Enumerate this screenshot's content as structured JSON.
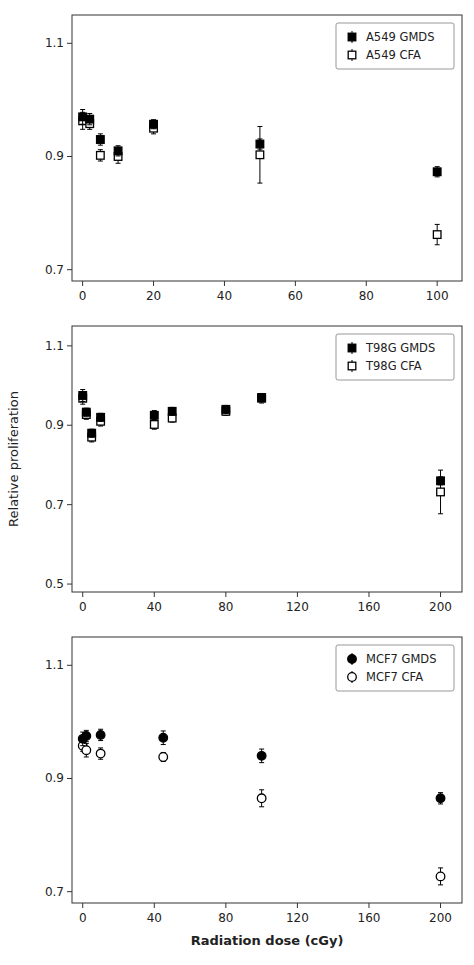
{
  "chart_data": [
    {
      "type": "scatter",
      "x": [
        0,
        2,
        5,
        10,
        20,
        50,
        100
      ],
      "xlim": [
        -3,
        107
      ],
      "xticks": [
        0,
        20,
        40,
        60,
        80,
        100
      ],
      "ylim": [
        0.68,
        1.15
      ],
      "yticks": [
        0.7,
        0.9,
        1.1
      ],
      "grid": false,
      "legend": "upper-right",
      "series": [
        {
          "name": "A549 GMDS",
          "color": "#000000",
          "marker": "square",
          "values": [
            0.97,
            0.966,
            0.93,
            0.91,
            0.957,
            0.922,
            0.873
          ],
          "errors": [
            0.013,
            0.01,
            0.01,
            0.009,
            0.008,
            0.009,
            0.009
          ]
        },
        {
          "name": "A549 CFA",
          "color": "#000000",
          "marker": "square-open",
          "values": [
            0.963,
            0.958,
            0.902,
            0.9,
            0.95,
            0.903,
            0.762
          ],
          "errors": [
            0.015,
            0.01,
            0.01,
            0.012,
            0.01,
            0.05,
            0.018
          ]
        }
      ]
    },
    {
      "type": "scatter",
      "x": [
        0,
        2,
        5,
        10,
        40,
        50,
        80,
        100,
        200
      ],
      "xlim": [
        -6,
        212
      ],
      "xticks": [
        0,
        40,
        80,
        120,
        160,
        200
      ],
      "ylim": [
        0.48,
        1.15
      ],
      "yticks": [
        0.5,
        0.7,
        0.9,
        1.1
      ],
      "ylabel": "Relative proliferation",
      "grid": false,
      "legend": "upper-right",
      "series": [
        {
          "name": "T98G GMDS",
          "color": "#000000",
          "marker": "square",
          "values": [
            0.975,
            0.933,
            0.88,
            0.92,
            0.925,
            0.935,
            0.94,
            0.97,
            0.76
          ],
          "errors": [
            0.015,
            0.01,
            0.01,
            0.01,
            0.012,
            0.01,
            0.01,
            0.01,
            0.01
          ]
        },
        {
          "name": "T98G CFA",
          "color": "#000000",
          "marker": "square-open",
          "values": [
            0.968,
            0.927,
            0.87,
            0.91,
            0.902,
            0.918,
            0.935,
            0.968,
            0.732
          ],
          "errors": [
            0.015,
            0.012,
            0.012,
            0.012,
            0.012,
            0.01,
            0.01,
            0.012,
            0.055
          ]
        }
      ]
    },
    {
      "type": "scatter",
      "x": [
        0,
        2,
        10,
        45,
        100,
        200
      ],
      "xlim": [
        -6,
        212
      ],
      "xticks": [
        0,
        40,
        80,
        120,
        160,
        200
      ],
      "ylim": [
        0.68,
        1.15
      ],
      "yticks": [
        0.7,
        0.9,
        1.1
      ],
      "xlabel": "Radiation dose (cGy)",
      "grid": false,
      "legend": "upper-right",
      "series": [
        {
          "name": "MCF7 GMDS",
          "color": "#000000",
          "marker": "circle",
          "values": [
            0.97,
            0.975,
            0.977,
            0.972,
            0.94,
            0.865
          ],
          "errors": [
            0.012,
            0.01,
            0.01,
            0.012,
            0.012,
            0.01
          ]
        },
        {
          "name": "MCF7 CFA",
          "color": "#000000",
          "marker": "circle-open",
          "values": [
            0.958,
            0.95,
            0.944,
            0.938,
            0.865,
            0.727
          ],
          "errors": [
            0.01,
            0.012,
            0.01,
            0.008,
            0.015,
            0.015
          ]
        }
      ]
    }
  ]
}
